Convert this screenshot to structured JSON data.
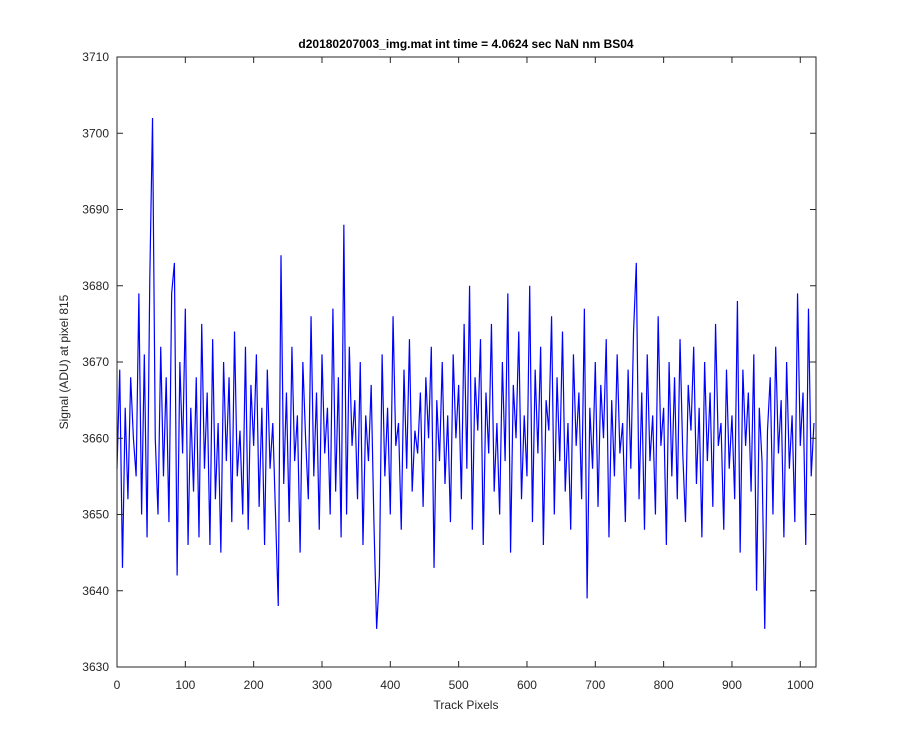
{
  "chart_data": {
    "type": "line",
    "title": "d20180207003_img.mat int time = 4.0624 sec  NaN nm BS04",
    "xlabel": "Track Pixels",
    "ylabel": "Signal (ADU) at pixel 815",
    "xlim": [
      0,
      1023
    ],
    "ylim": [
      3630,
      3710
    ],
    "xticks": [
      0,
      100,
      200,
      300,
      400,
      500,
      600,
      700,
      800,
      900,
      1000
    ],
    "yticks": [
      3630,
      3640,
      3650,
      3660,
      3670,
      3680,
      3690,
      3700,
      3710
    ],
    "x": [
      0,
      4,
      8,
      12,
      16,
      20,
      24,
      28,
      32,
      36,
      40,
      44,
      48,
      52,
      56,
      60,
      64,
      68,
      72,
      76,
      80,
      84,
      88,
      92,
      96,
      100,
      104,
      108,
      112,
      116,
      120,
      124,
      128,
      132,
      136,
      140,
      144,
      148,
      152,
      156,
      160,
      164,
      168,
      172,
      176,
      180,
      184,
      188,
      192,
      196,
      200,
      204,
      208,
      212,
      216,
      220,
      224,
      228,
      232,
      236,
      240,
      244,
      248,
      252,
      256,
      260,
      264,
      268,
      272,
      276,
      280,
      284,
      288,
      292,
      296,
      300,
      304,
      308,
      312,
      316,
      320,
      324,
      328,
      332,
      336,
      340,
      344,
      348,
      352,
      356,
      360,
      364,
      368,
      372,
      376,
      380,
      384,
      388,
      392,
      396,
      400,
      404,
      408,
      412,
      416,
      420,
      424,
      428,
      432,
      436,
      440,
      444,
      448,
      452,
      456,
      460,
      464,
      468,
      472,
      476,
      480,
      484,
      488,
      492,
      496,
      500,
      504,
      508,
      512,
      516,
      520,
      524,
      528,
      532,
      536,
      540,
      544,
      548,
      552,
      556,
      560,
      564,
      568,
      572,
      576,
      580,
      584,
      588,
      592,
      596,
      600,
      604,
      608,
      612,
      616,
      620,
      624,
      628,
      632,
      636,
      640,
      644,
      648,
      652,
      656,
      660,
      664,
      668,
      672,
      676,
      680,
      684,
      688,
      692,
      696,
      700,
      704,
      708,
      712,
      716,
      720,
      724,
      728,
      732,
      736,
      740,
      744,
      748,
      752,
      756,
      760,
      764,
      768,
      772,
      776,
      780,
      784,
      788,
      792,
      796,
      800,
      804,
      808,
      812,
      816,
      820,
      824,
      828,
      832,
      836,
      840,
      844,
      848,
      852,
      856,
      860,
      864,
      868,
      872,
      876,
      880,
      884,
      888,
      892,
      896,
      900,
      904,
      908,
      912,
      916,
      920,
      924,
      928,
      932,
      936,
      940,
      944,
      948,
      952,
      956,
      960,
      964,
      968,
      972,
      976,
      980,
      984,
      988,
      992,
      996,
      1000,
      1004,
      1008,
      1012,
      1016,
      1020
    ],
    "series": [
      {
        "name": "Signal",
        "color": "#0000ff",
        "values": [
          3656,
          3669,
          3643,
          3664,
          3652,
          3668,
          3660,
          3655,
          3679,
          3650,
          3671,
          3647,
          3681,
          3702,
          3660,
          3650,
          3672,
          3655,
          3668,
          3649,
          3679,
          3683,
          3642,
          3670,
          3658,
          3677,
          3646,
          3664,
          3653,
          3668,
          3647,
          3675,
          3656,
          3666,
          3646,
          3673,
          3652,
          3662,
          3645,
          3670,
          3657,
          3668,
          3649,
          3674,
          3655,
          3661,
          3650,
          3672,
          3648,
          3667,
          3659,
          3671,
          3651,
          3664,
          3646,
          3669,
          3656,
          3662,
          3650,
          3638,
          3684,
          3654,
          3666,
          3649,
          3672,
          3657,
          3663,
          3645,
          3670,
          3660,
          3652,
          3676,
          3655,
          3666,
          3648,
          3671,
          3658,
          3664,
          3650,
          3677,
          3653,
          3668,
          3647,
          3688,
          3650,
          3672,
          3659,
          3665,
          3652,
          3670,
          3646,
          3663,
          3657,
          3667,
          3649,
          3635,
          3642,
          3671,
          3655,
          3664,
          3650,
          3676,
          3659,
          3662,
          3648,
          3669,
          3656,
          3673,
          3653,
          3661,
          3658,
          3666,
          3651,
          3668,
          3660,
          3672,
          3643,
          3665,
          3657,
          3670,
          3654,
          3663,
          3649,
          3671,
          3660,
          3667,
          3652,
          3675,
          3656,
          3680,
          3648,
          3668,
          3661,
          3673,
          3646,
          3666,
          3658,
          3675,
          3653,
          3662,
          3650,
          3670,
          3657,
          3679,
          3645,
          3667,
          3660,
          3674,
          3652,
          3663,
          3655,
          3680,
          3649,
          3669,
          3658,
          3672,
          3646,
          3665,
          3661,
          3676,
          3650,
          3668,
          3657,
          3674,
          3653,
          3662,
          3648,
          3671,
          3659,
          3666,
          3652,
          3677,
          3639,
          3664,
          3656,
          3670,
          3651,
          3667,
          3660,
          3673,
          3647,
          3665,
          3655,
          3671,
          3658,
          3662,
          3649,
          3669,
          3656,
          3674,
          3683,
          3652,
          3666,
          3648,
          3671,
          3657,
          3663,
          3650,
          3676,
          3659,
          3664,
          3646,
          3670,
          3655,
          3668,
          3652,
          3673,
          3658,
          3649,
          3667,
          3661,
          3672,
          3654,
          3664,
          3647,
          3670,
          3657,
          3666,
          3651,
          3675,
          3659,
          3662,
          3648,
          3669,
          3656,
          3663,
          3652,
          3678,
          3645,
          3669,
          3659,
          3666,
          3653,
          3671,
          3640,
          3664,
          3657,
          3635,
          3661,
          3668,
          3650,
          3672,
          3658,
          3665,
          3647,
          3670,
          3656,
          3663,
          3649,
          3679,
          3659,
          3666,
          3646,
          3677,
          3655,
          3662
        ]
      }
    ]
  }
}
